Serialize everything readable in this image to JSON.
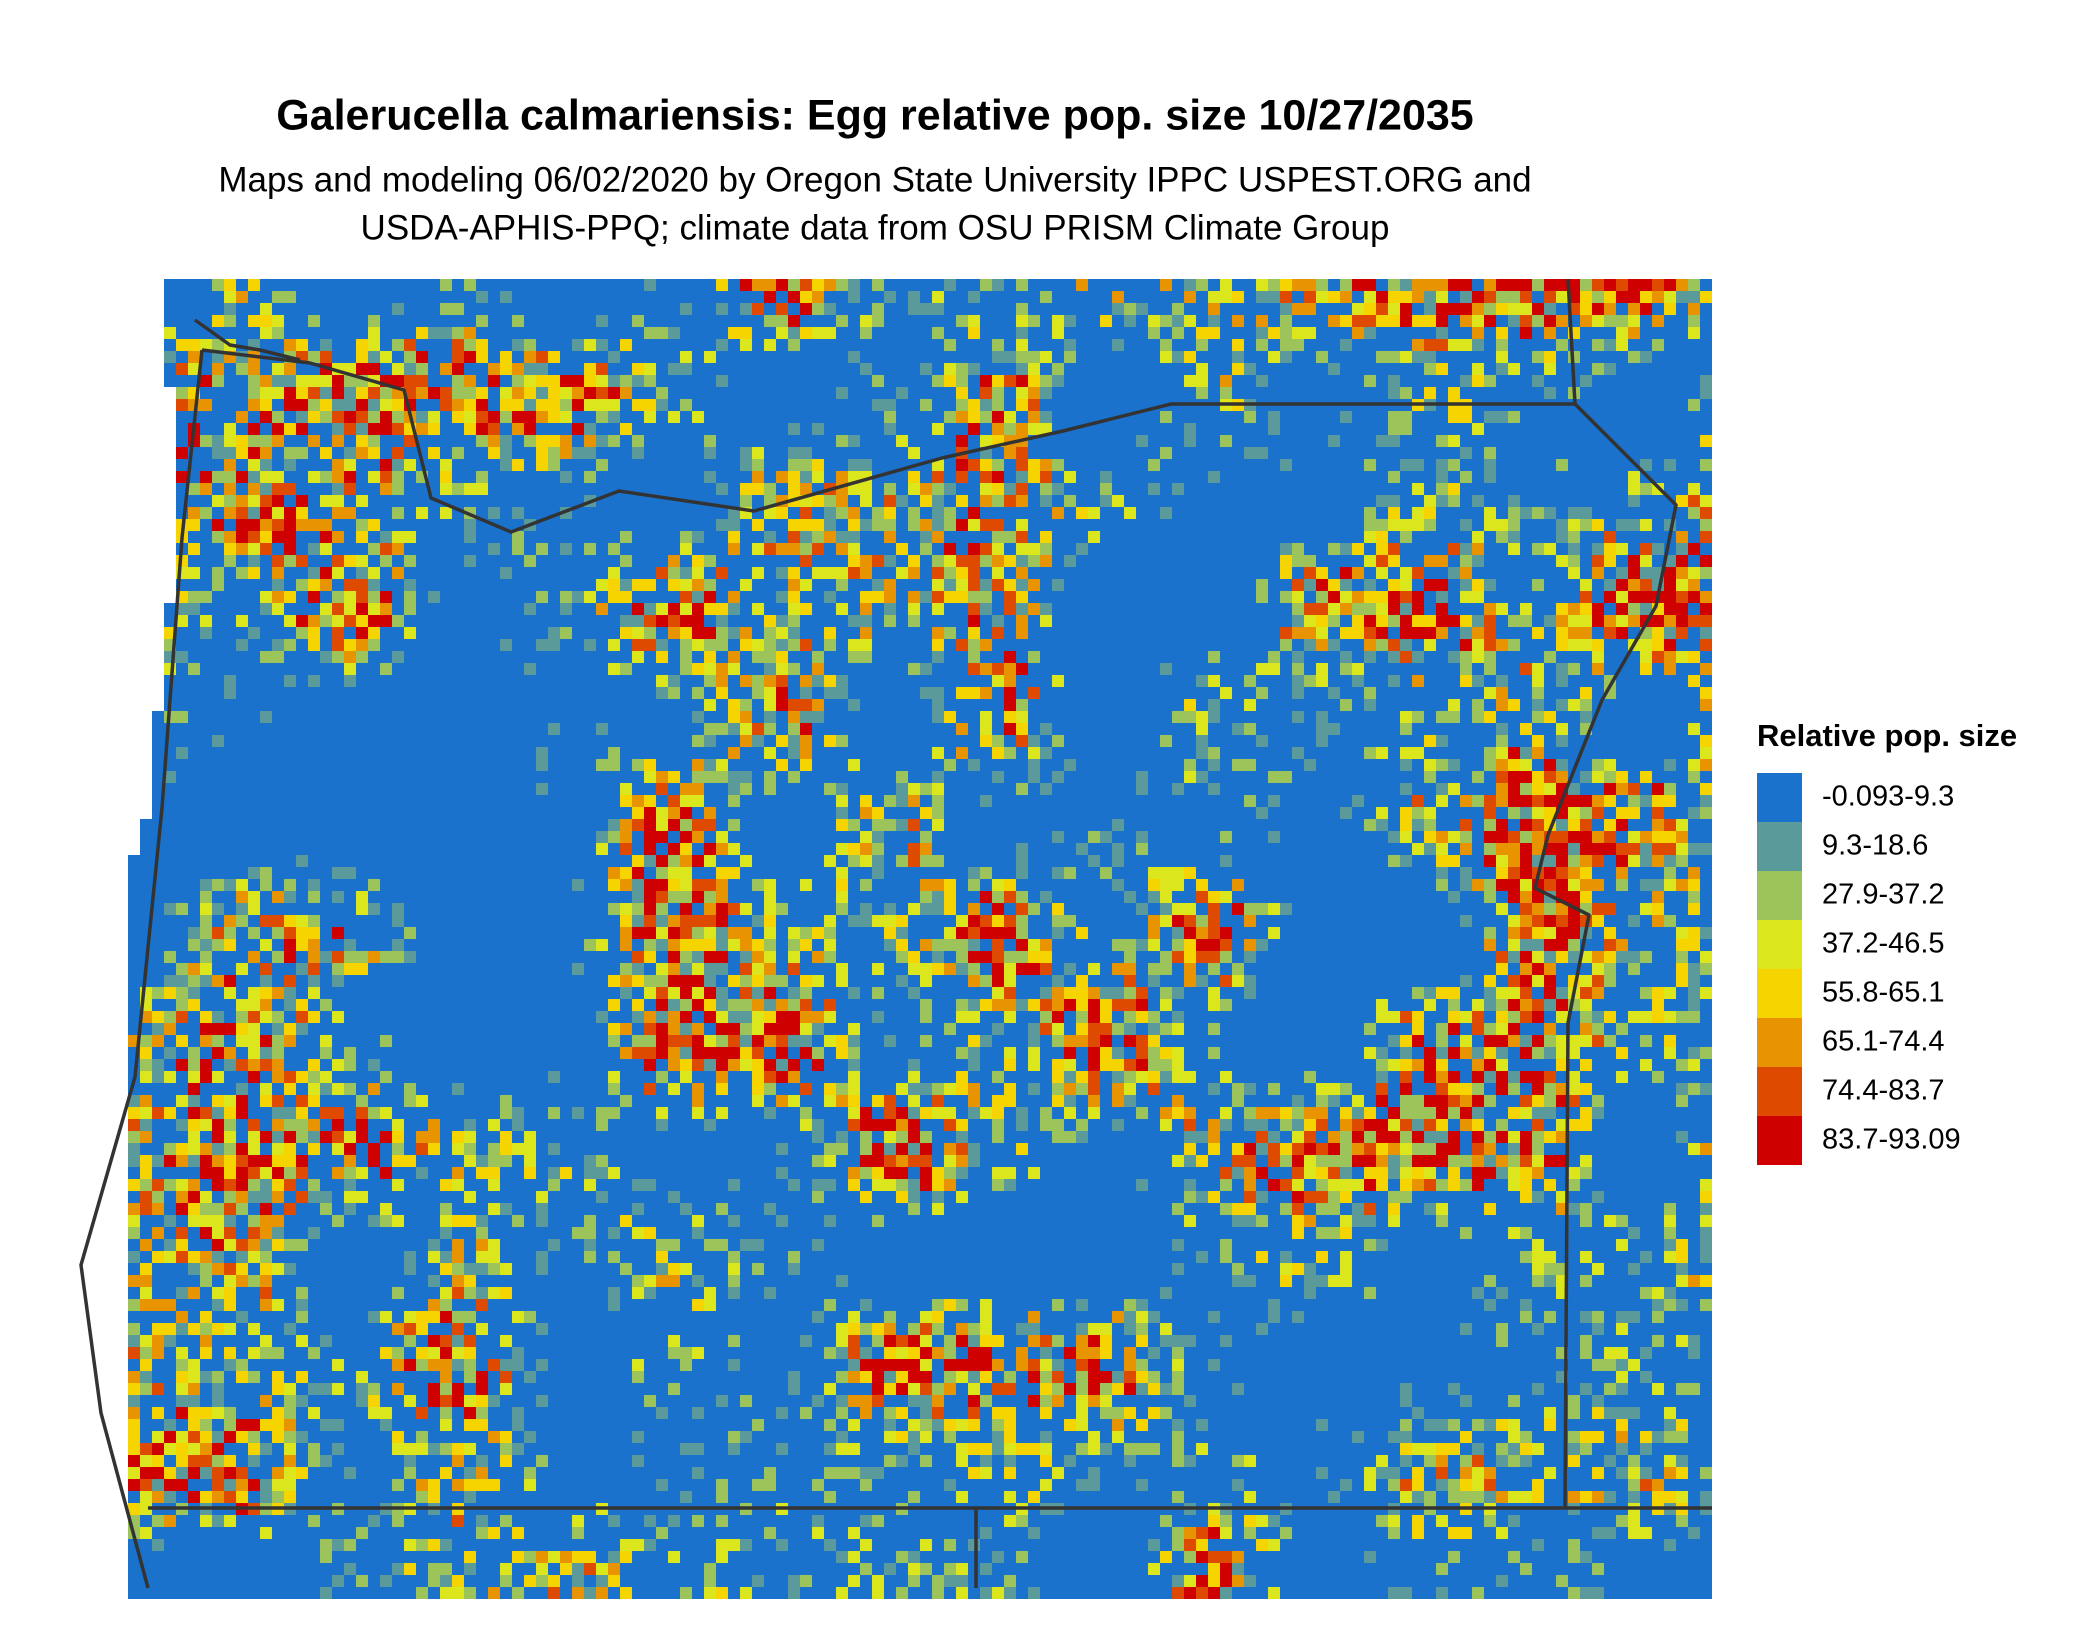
{
  "title": "Galerucella calmariensis: Egg relative pop. size 10/27/2035",
  "subtitle": [
    "Maps and modeling 06/02/2020 by Oregon State University IPPC USPEST.ORG and",
    "USDA-APHIS-PPQ; climate data from OSU PRISM Climate Group"
  ],
  "legend": {
    "title": "Relative pop. size",
    "items": [
      {
        "label": "-0.093-9.3",
        "color": "#1a72cc"
      },
      {
        "label": "9.3-18.6",
        "color": "#5b9a9a"
      },
      {
        "label": "27.9-37.2",
        "color": "#9dc45a"
      },
      {
        "label": "37.2-46.5",
        "color": "#dbe61c"
      },
      {
        "label": "55.8-65.1",
        "color": "#f5d400"
      },
      {
        "label": "65.1-74.4",
        "color": "#e89400"
      },
      {
        "label": "74.4-83.7",
        "color": "#dd4a00"
      },
      {
        "label": "83.7-93.09",
        "color": "#cf0000"
      }
    ]
  }
}
